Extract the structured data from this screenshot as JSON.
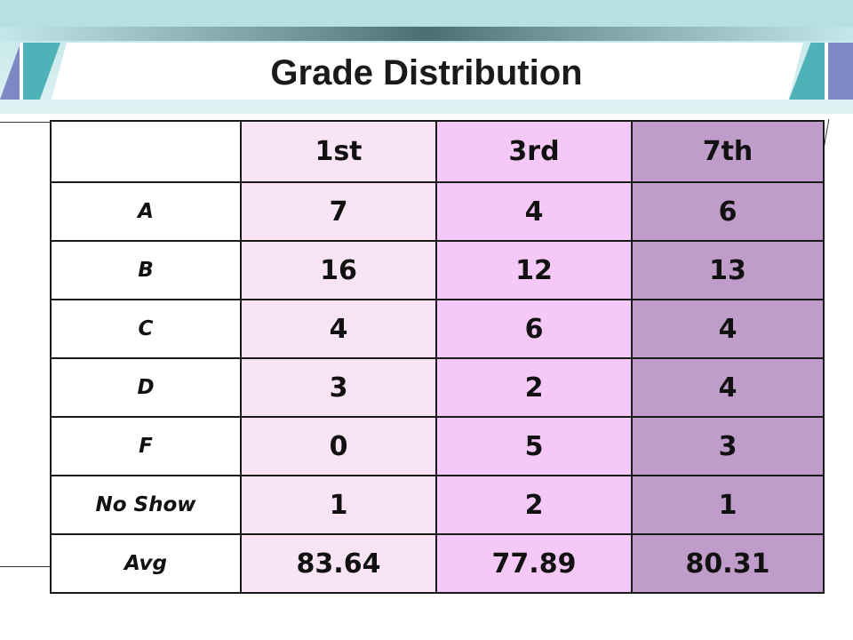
{
  "title": "Grade Distribution",
  "table": {
    "columns": [
      "1st",
      "3rd",
      "7th"
    ],
    "rows": [
      {
        "label": "A",
        "values": [
          "7",
          "4",
          "6"
        ]
      },
      {
        "label": "B",
        "values": [
          "16",
          "12",
          "13"
        ]
      },
      {
        "label": "C",
        "values": [
          "4",
          "6",
          "4"
        ]
      },
      {
        "label": "D",
        "values": [
          "3",
          "2",
          "4"
        ]
      },
      {
        "label": "F",
        "values": [
          "0",
          "5",
          "3"
        ]
      },
      {
        "label": "No Show",
        "values": [
          "1",
          "2",
          "1"
        ]
      },
      {
        "label": "Avg",
        "values": [
          "83.64",
          "77.89",
          "80.31"
        ]
      }
    ]
  },
  "colors": {
    "col_1st": "#f8e4f4",
    "col_3rd": "#f6c8f8",
    "col_7th": "#c09cca",
    "header_teal": "#b7e0e4",
    "accent_teal": "#4fb2b8",
    "accent_purple": "#7e88c4"
  }
}
